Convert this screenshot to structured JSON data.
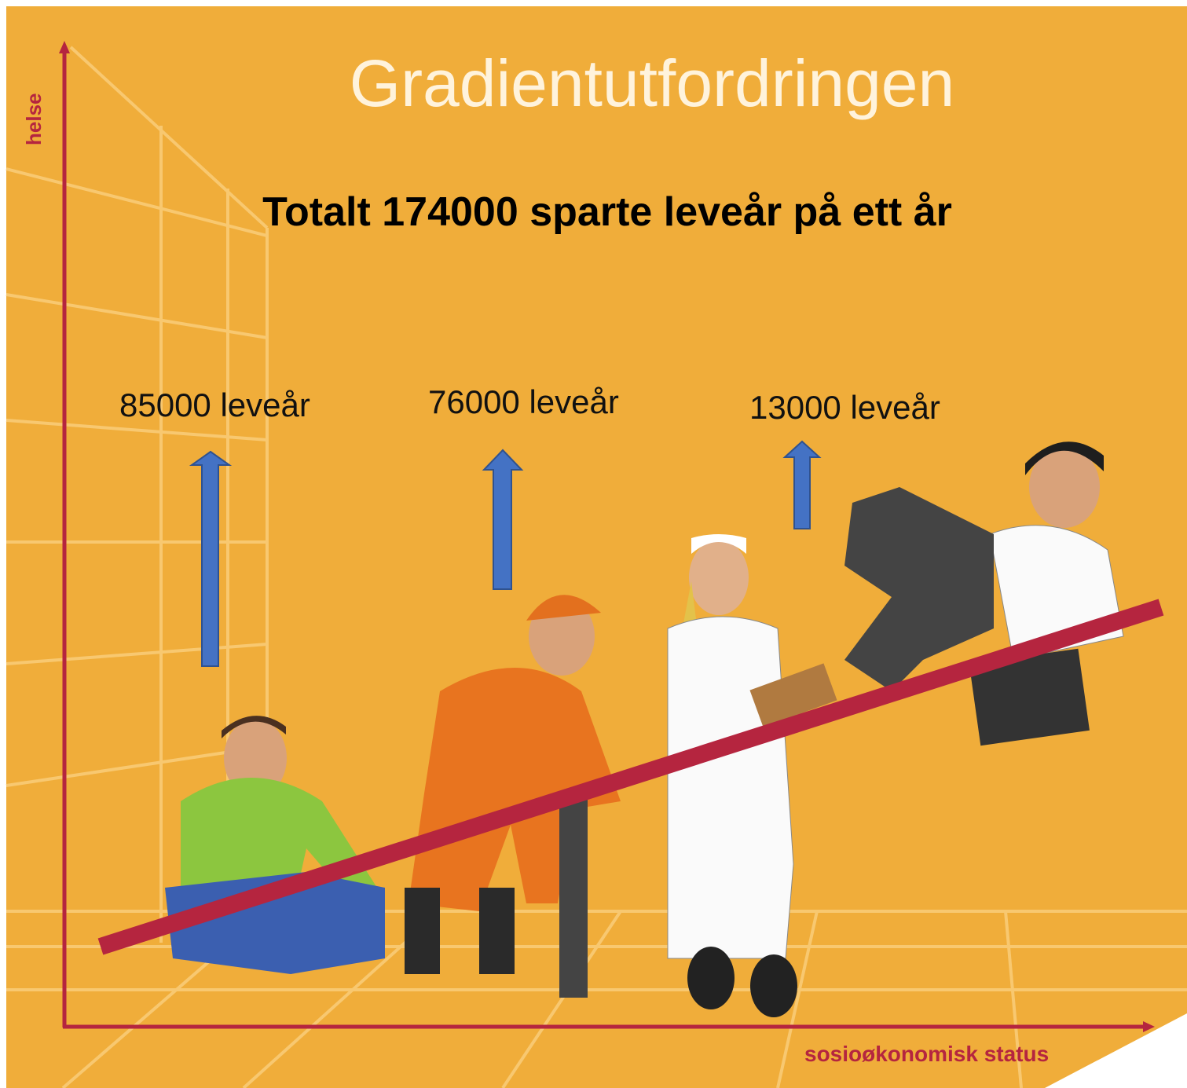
{
  "title": "Gradientutfordringen",
  "headline": "Totalt 174000 sparte leveår på ett år",
  "y_axis_label": "helse",
  "x_axis_label": "sosioøkonomisk status",
  "groups": [
    {
      "label": "85000 leveår"
    },
    {
      "label": "76000 leveår"
    },
    {
      "label": "13000 leveår"
    }
  ]
}
